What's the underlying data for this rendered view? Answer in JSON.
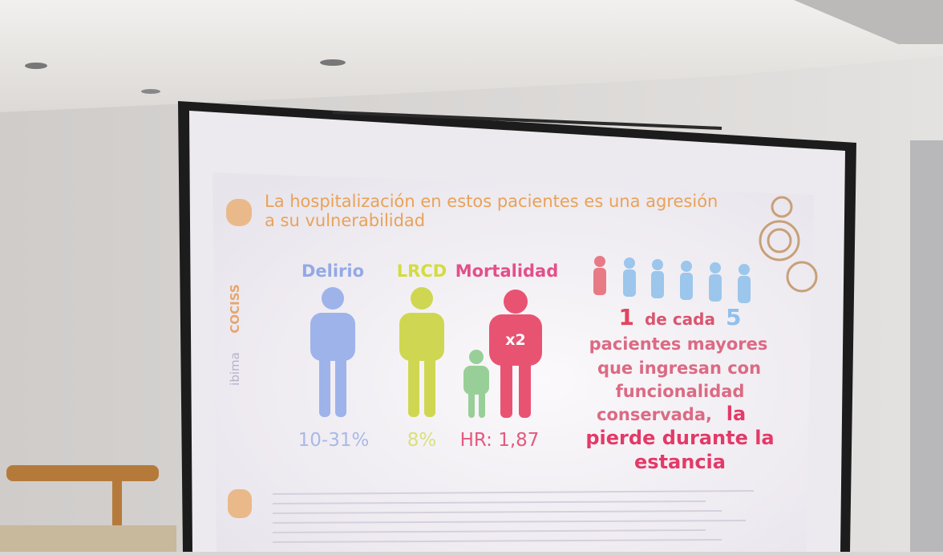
{
  "slide": {
    "title": "La hospitalización en estos pacientes es una agresión a su vulnerabilidad",
    "stats": [
      {
        "label": "Delirio",
        "value": "10-31%"
      },
      {
        "label": "LRCD",
        "value": "8%"
      },
      {
        "label": "Mortalidad",
        "badge": "x2",
        "value": "HR: 1,87"
      }
    ],
    "highlight": {
      "number1": "1",
      "text1": "de cada",
      "number2": "5",
      "line1": "pacientes mayores",
      "line2": "que ingresan con",
      "line3": "funcionalidad",
      "line4": "conservada,",
      "emphasis1": "la",
      "emphasis2": "pierde durante la",
      "emphasis3": "estancia"
    },
    "sidebar": [
      "COCISS",
      "ibima"
    ]
  }
}
